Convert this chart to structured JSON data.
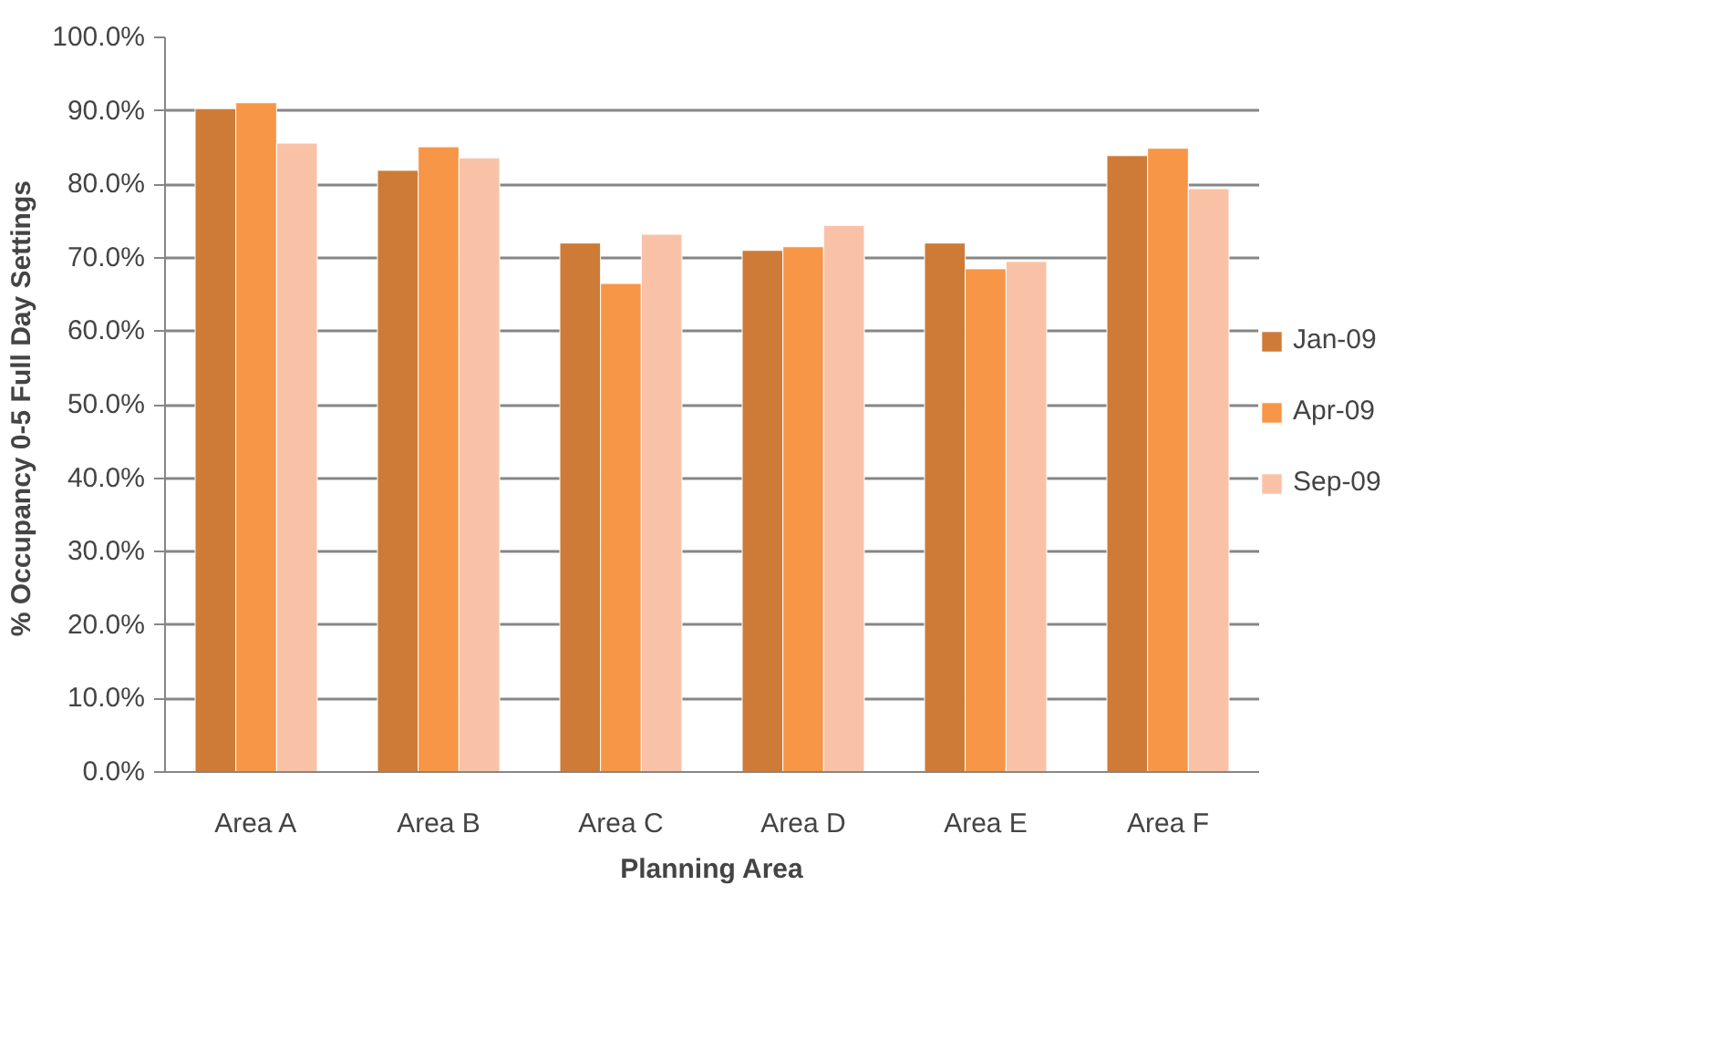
{
  "chart_data": {
    "type": "bar",
    "xlabel": "Planning Area",
    "ylabel": "% Occupancy  0-5 Full Day Settings",
    "categories": [
      "Area A",
      "Area B",
      "Area C",
      "Area D",
      "Area E",
      "Area F"
    ],
    "series": [
      {
        "name": "Jan-09",
        "color": "#cd7b37",
        "values": [
          90.3,
          81.9,
          72.0,
          71.0,
          72.0,
          83.9
        ]
      },
      {
        "name": "Apr-09",
        "color": "#f69646",
        "values": [
          91.1,
          85.1,
          66.5,
          71.5,
          68.5,
          84.9
        ]
      },
      {
        "name": "Sep-09",
        "color": "#f9c2a7",
        "values": [
          85.6,
          83.6,
          73.2,
          74.4,
          69.5,
          79.4
        ]
      }
    ],
    "ylim": [
      0,
      100
    ],
    "yticks": [
      {
        "value": 0,
        "label": "0.0%"
      },
      {
        "value": 10,
        "label": "10.0%"
      },
      {
        "value": 20,
        "label": "20.0%"
      },
      {
        "value": 30,
        "label": "30.0%"
      },
      {
        "value": 40,
        "label": "40.0%"
      },
      {
        "value": 50,
        "label": "50.0%"
      },
      {
        "value": 60,
        "label": "60.0%"
      },
      {
        "value": 70,
        "label": "70.0%"
      },
      {
        "value": 80,
        "label": "80.0%"
      },
      {
        "value": 90,
        "label": "90.0%"
      },
      {
        "value": 100,
        "label": "100.0%"
      }
    ],
    "grid": "y",
    "legend": "right"
  }
}
